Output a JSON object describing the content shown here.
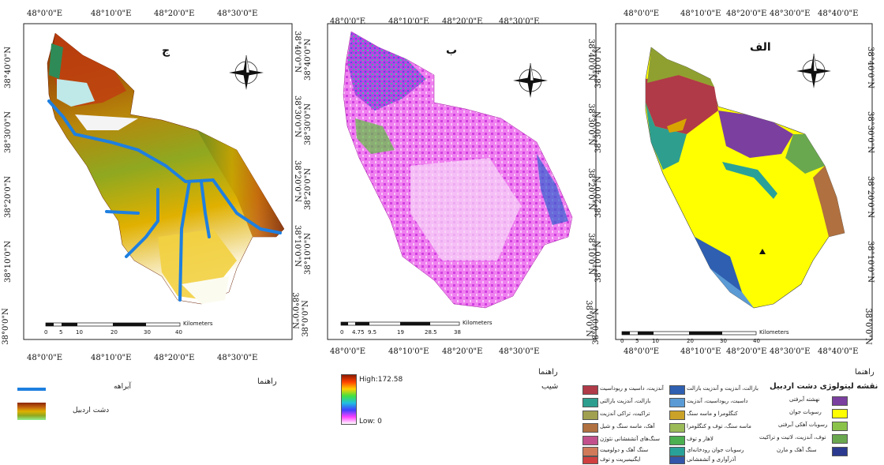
{
  "panels": {
    "right": {
      "letter": "الف",
      "top_lon": [
        "48°0'0\"E",
        "48°10'0\"E",
        "48°20'0\"E",
        "48°30'0\"E",
        "48°40'0\"E"
      ],
      "bottom_lon": [
        "48°0'0\"E",
        "48°10'0\"E",
        "48°20'0\"E",
        "48°30'0\"E",
        "48°40'0\"E"
      ],
      "left_lat": [
        "38°40'0\"N",
        "38°30'0\"N",
        "38°20'0\"N",
        "38°10'0\"N",
        "38°0'0\"N"
      ],
      "right_lat": [
        "38°40'0\"N",
        "38°30'0\"N",
        "38°20'0\"N",
        "38°10'0\"N",
        "38°0'0\"N"
      ],
      "scale_ticks": [
        "0",
        "5",
        "10",
        "20",
        "30",
        "40"
      ],
      "scale_unit": "Kilometers"
    },
    "middle": {
      "letter": "ب",
      "top_lon": [
        "48°0'0\"E",
        "48°10'0\"E",
        "48°20'0\"E",
        "48°30'0\"E"
      ],
      "bottom_lon": [
        "48°0'0\"E",
        "48°10'0\"E",
        "48°20'0\"E",
        "48°30'0\"E"
      ],
      "right_lat": [
        "38°40'0\"N",
        "38°30'0\"N",
        "38°20'0\"N",
        "38°10'0\"N",
        "38°0'0\"N"
      ],
      "scale_ticks": [
        "0",
        "4.75",
        "9.5",
        "19",
        "28.5",
        "38"
      ],
      "scale_unit": "Kilometers"
    },
    "left": {
      "letter": "ج",
      "top_lon": [
        "48°0'0\"E",
        "48°10'0\"E",
        "48°20'0\"E",
        "48°30'0\"E"
      ],
      "bottom_lon": [
        "48°0'0\"E",
        "48°10'0\"E",
        "48°20'0\"E",
        "48°30'0\"E"
      ],
      "left_lat": [
        "38°40'0\"N",
        "38°30'0\"N",
        "38°20'0\"N",
        "38°10'0\"N",
        "38°0'0\"N"
      ],
      "right_lat": [
        "38°40'0\"N",
        "38°30'0\"N",
        "38°20'0\"N",
        "38°10'0\"N",
        "38°0'0\"N"
      ],
      "scale_ticks": [
        "0",
        "5",
        "10",
        "20",
        "30",
        "40"
      ],
      "scale_unit": "Kilometers"
    }
  },
  "legend_left": {
    "heading": "راهنما",
    "items": [
      {
        "label": "آبراهه",
        "color": "#1e7fe0"
      },
      {
        "label": "دشت اردبیل",
        "color": "#8b3a00"
      }
    ]
  },
  "legend_middle": {
    "heading": "راهنما",
    "ramp_title": "شیب",
    "high": "High:172.58",
    "low": "Low: 0"
  },
  "legend_right": {
    "heading": "راهنما",
    "title": "نقشه لیتولوژی دشت اردبیل",
    "col1": [
      {
        "label": "نهشته آبرفتی",
        "color": "#7b3fa0"
      },
      {
        "label": "رسوبات جوان",
        "color": "#ffff00"
      },
      {
        "label": "رسوبات آهکی آبرفتی",
        "color": "#8bc34a"
      },
      {
        "label": "توف، آندزیت، لاتیت و تراکیت",
        "color": "#6aa84f"
      },
      {
        "label": "سنگ آهک و مارن",
        "color": "#2b3a8f"
      }
    ],
    "col2": [
      {
        "label": "بازالت، آندزیت و آندزیت بازالت",
        "color": "#2f5fb0"
      },
      {
        "label": "داسیت، ریوداسیت، آندزیت",
        "color": "#5b9bd5"
      },
      {
        "label": "کنگلومرا و ماسه سنگ",
        "color": "#c9a227"
      },
      {
        "label": "ماسه سنگ، توف و کنگلومرا",
        "color": "#9bbb59"
      },
      {
        "label": "لاهار و توف",
        "color": "#4caf50"
      },
      {
        "label": "رسوبات جوان رودخانه‌ای",
        "color": "#2aa198"
      },
      {
        "label": "آذرآواری و آتشفشانی",
        "color": "#3355aa"
      }
    ],
    "col3": [
      {
        "label": "آندزیت، داسیت و ریوداسیت",
        "color": "#b03a48"
      },
      {
        "label": "بازالت، آندزیت بازالتی",
        "color": "#2e9e8f"
      },
      {
        "label": "تراکیت، تراکی آندزیت",
        "color": "#a0a050"
      },
      {
        "label": "آهک، ماسه سنگ و شیل",
        "color": "#b07040"
      },
      {
        "label": "سنگ‌های آتشفشانی نئوژن",
        "color": "#c2508c"
      },
      {
        "label": "سنگ آهک و دولومیت",
        "color": "#d07a5a"
      },
      {
        "label": "ایگنیمبریت و توف",
        "color": "#d04040"
      }
    ]
  }
}
